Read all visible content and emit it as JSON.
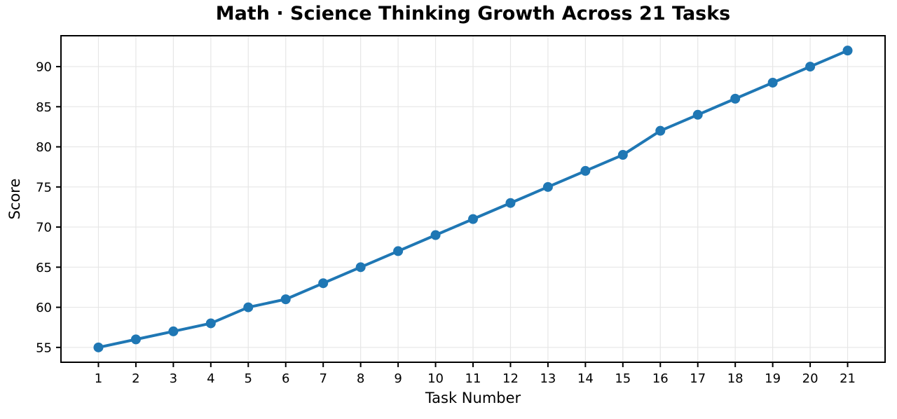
{
  "figure": {
    "background_color": "#ffffff"
  },
  "chart_data": {
    "type": "line",
    "title": "Math · Science Thinking Growth Across 21 Tasks",
    "xlabel": "Task Number",
    "ylabel": "Score",
    "x": [
      1,
      2,
      3,
      4,
      5,
      6,
      7,
      8,
      9,
      10,
      11,
      12,
      13,
      14,
      15,
      16,
      17,
      18,
      19,
      20,
      21
    ],
    "values": [
      55,
      56,
      57,
      58,
      60,
      61,
      63,
      65,
      67,
      69,
      71,
      73,
      75,
      77,
      79,
      82,
      84,
      86,
      88,
      90,
      92
    ],
    "series_name": "Score",
    "xticks": [
      1,
      2,
      3,
      4,
      5,
      6,
      7,
      8,
      9,
      10,
      11,
      12,
      13,
      14,
      15,
      16,
      17,
      18,
      19,
      20,
      21
    ],
    "yticks": [
      55,
      60,
      65,
      70,
      75,
      80,
      85,
      90
    ],
    "xlim": [
      0,
      22
    ],
    "ylim": [
      53.15,
      93.85
    ],
    "grid": true,
    "legend": "none",
    "line_color": "#1f77b4",
    "grid_color": "#e6e6e6",
    "spine_color": "#000000",
    "tick_label_color": "#000000",
    "line_width": 4,
    "marker": "circle",
    "marker_radius": 7
  }
}
